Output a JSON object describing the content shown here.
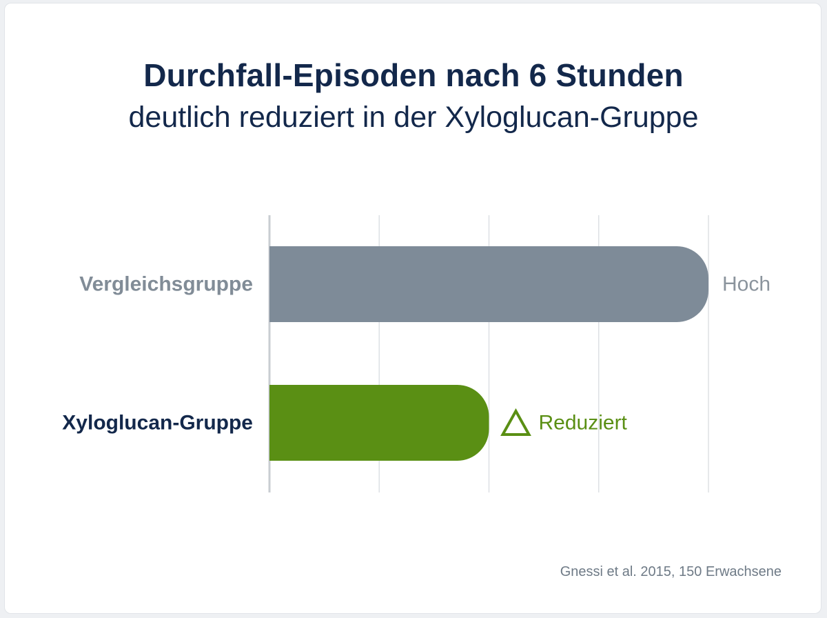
{
  "title": "Durchfall-Episoden nach 6 Stunden",
  "subtitle": "deutlich reduziert in der Xyloglucan-Gruppe",
  "source": "Gnessi et al. 2015, 150 Erwachsene",
  "chart_data": {
    "type": "bar",
    "orientation": "horizontal",
    "categories": [
      "Vergleichsgruppe",
      "Xyloglucan-Gruppe"
    ],
    "values": [
      100,
      50
    ],
    "value_labels": [
      "Hoch",
      "Reduziert"
    ],
    "xlim": [
      0,
      100
    ],
    "grid": true,
    "colors": [
      "#7e8b98",
      "#5a8f14"
    ],
    "label_colors": [
      "#818c97",
      "#13284b"
    ],
    "value_label_colors": [
      "#8b949d",
      "#5a8f14"
    ],
    "icons": [
      "",
      "triangle-icon"
    ]
  }
}
